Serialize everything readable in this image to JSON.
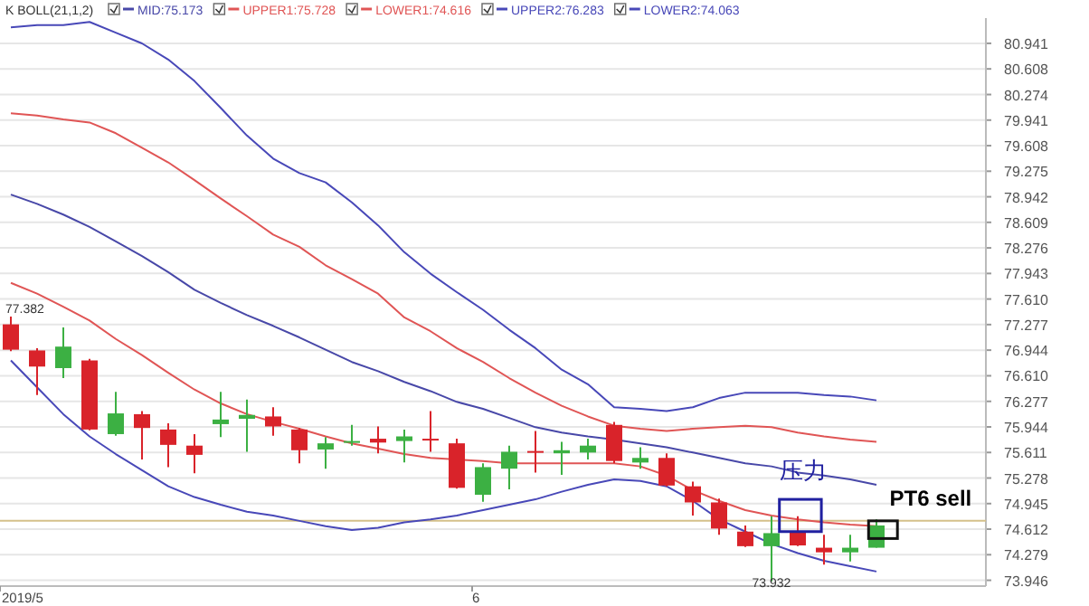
{
  "chart_data": {
    "type": "candlestick",
    "title": "K  BOLL(21,1,2)",
    "categories": [
      "2019/5",
      null,
      null,
      null,
      null,
      null,
      null,
      null,
      null,
      null,
      null,
      null,
      null,
      null,
      null,
      null,
      null,
      null,
      "6",
      null,
      null,
      null,
      null,
      null,
      null,
      null,
      null,
      null,
      null,
      null,
      null,
      null,
      null,
      null
    ],
    "ohlc": [
      [
        77.28,
        77.382,
        76.93,
        76.95
      ],
      [
        76.94,
        76.97,
        76.36,
        76.73
      ],
      [
        76.71,
        77.24,
        76.58,
        76.99
      ],
      [
        76.81,
        76.83,
        75.9,
        75.91
      ],
      [
        75.85,
        76.4,
        75.83,
        76.12
      ],
      [
        76.11,
        76.15,
        75.52,
        75.93
      ],
      [
        75.91,
        75.99,
        75.42,
        75.71
      ],
      [
        75.7,
        75.85,
        75.34,
        75.58
      ],
      [
        75.98,
        76.4,
        75.81,
        76.04
      ],
      [
        76.05,
        76.3,
        75.62,
        76.1
      ],
      [
        76.08,
        76.2,
        75.83,
        75.95
      ],
      [
        75.91,
        75.93,
        75.47,
        75.64
      ],
      [
        75.65,
        75.81,
        75.4,
        75.73
      ],
      [
        75.74,
        75.97,
        75.7,
        75.76
      ],
      [
        75.79,
        75.95,
        75.6,
        75.74
      ],
      [
        75.76,
        75.91,
        75.48,
        75.82
      ],
      [
        75.79,
        76.15,
        75.62,
        75.77
      ],
      [
        75.73,
        75.79,
        75.14,
        75.15
      ],
      [
        75.06,
        75.47,
        74.97,
        75.42
      ],
      [
        75.4,
        75.7,
        75.13,
        75.62
      ],
      [
        75.63,
        75.89,
        75.35,
        75.61
      ],
      [
        75.6,
        75.75,
        75.32,
        75.64
      ],
      [
        75.61,
        75.79,
        75.52,
        75.7
      ],
      [
        75.97,
        76.01,
        75.47,
        75.5
      ],
      [
        75.48,
        75.68,
        75.4,
        75.54
      ],
      [
        75.54,
        75.6,
        75.17,
        75.18
      ],
      [
        75.17,
        75.23,
        74.79,
        74.96
      ],
      [
        74.96,
        75.01,
        74.54,
        74.62
      ],
      [
        74.58,
        74.66,
        74.38,
        74.39
      ],
      [
        74.39,
        74.78,
        73.932,
        74.56
      ],
      [
        74.58,
        74.78,
        74.39,
        74.4
      ],
      [
        74.37,
        74.54,
        74.15,
        74.31
      ],
      [
        74.31,
        74.54,
        74.19,
        74.37
      ],
      [
        74.37,
        74.74,
        74.37,
        74.66
      ]
    ],
    "colors": [
      "#d9232a",
      "#d9232a",
      "#3cb043",
      "#d9232a",
      "#3cb043",
      "#d9232a",
      "#d9232a",
      "#d9232a",
      "#3cb043",
      "#3cb043",
      "#d9232a",
      "#d9232a",
      "#3cb043",
      "#3cb043",
      "#d9232a",
      "#3cb043",
      "#d9232a",
      "#d9232a",
      "#3cb043",
      "#3cb043",
      "#d9232a",
      "#3cb043",
      "#3cb043",
      "#d9232a",
      "#3cb043",
      "#d9232a",
      "#d9232a",
      "#d9232a",
      "#d9232a",
      "#3cb043",
      "#d9232a",
      "#d9232a",
      "#3cb043",
      "#3cb043"
    ],
    "series": [
      {
        "type": "line",
        "name": "MID:75.173",
        "color": "#4848a8",
        "values": [
          78.97,
          78.85,
          78.71,
          78.55,
          78.36,
          78.17,
          77.96,
          77.73,
          77.56,
          77.4,
          77.26,
          77.11,
          76.95,
          76.79,
          76.67,
          76.53,
          76.41,
          76.27,
          76.18,
          76.06,
          75.94,
          75.87,
          75.82,
          75.78,
          75.73,
          75.68,
          75.61,
          75.54,
          75.47,
          75.43,
          75.35,
          75.31,
          75.26,
          75.19
        ]
      },
      {
        "type": "line",
        "name": "UPPER1:75.728",
        "color": "#e05555",
        "values": [
          80.03,
          80.0,
          79.95,
          79.91,
          79.77,
          79.58,
          79.39,
          79.16,
          78.92,
          78.69,
          78.45,
          78.29,
          78.05,
          77.87,
          77.68,
          77.37,
          77.19,
          76.97,
          76.79,
          76.58,
          76.39,
          76.22,
          76.08,
          75.96,
          75.92,
          75.89,
          75.92,
          75.94,
          75.96,
          75.94,
          75.87,
          75.82,
          75.78,
          75.75
        ]
      },
      {
        "type": "line",
        "name": "LOWER1:74.616",
        "color": "#e05555",
        "values": [
          77.82,
          77.68,
          77.51,
          77.33,
          77.09,
          76.88,
          76.65,
          76.43,
          76.25,
          76.11,
          76.01,
          75.92,
          75.82,
          75.73,
          75.66,
          75.59,
          75.54,
          75.52,
          75.5,
          75.47,
          75.47,
          75.47,
          75.47,
          75.47,
          75.43,
          75.31,
          75.12,
          74.98,
          74.86,
          74.79,
          74.74,
          74.7,
          74.67,
          74.65
        ]
      },
      {
        "type": "line",
        "name": "UPPER2:76.283",
        "color": "#4848b8",
        "values": [
          81.15,
          81.18,
          81.18,
          81.22,
          81.08,
          80.94,
          80.73,
          80.45,
          80.1,
          79.74,
          79.44,
          79.25,
          79.13,
          78.87,
          78.57,
          78.22,
          77.94,
          77.7,
          77.47,
          77.21,
          76.97,
          76.69,
          76.5,
          76.2,
          76.18,
          76.15,
          76.2,
          76.32,
          76.39,
          76.39,
          76.39,
          76.36,
          76.34,
          76.29
        ]
      },
      {
        "type": "line",
        "name": "LOWER2:74.063",
        "color": "#4848b8",
        "values": [
          76.81,
          76.46,
          76.11,
          75.82,
          75.59,
          75.38,
          75.17,
          75.03,
          74.93,
          74.84,
          74.79,
          74.72,
          74.65,
          74.6,
          74.63,
          74.7,
          74.74,
          74.79,
          74.86,
          74.93,
          75.0,
          75.1,
          75.19,
          75.26,
          75.24,
          75.17,
          74.98,
          74.74,
          74.58,
          74.42,
          74.3,
          74.2,
          74.13,
          74.06
        ]
      }
    ],
    "ylim": [
      73.87,
      81.27
    ],
    "yticks": [
      80.941,
      80.608,
      80.274,
      79.941,
      79.608,
      79.275,
      78.942,
      78.609,
      78.276,
      77.943,
      {
        "value": 77.61,
        "label": "77.610"
      },
      77.277,
      76.944,
      {
        "value": 76.61,
        "label": "76.610"
      },
      76.277,
      75.944,
      75.611,
      75.278,
      74.945,
      74.612,
      74.279,
      73.946
    ],
    "grid": "y",
    "legend": "top left",
    "line_style": "solid",
    "ref_lines": [
      {
        "axis": "y",
        "value": 74.72,
        "color": "#d4c08a"
      }
    ],
    "annotations": [
      "77.382",
      "73.932",
      "压力",
      "PT6 sell"
    ]
  }
}
